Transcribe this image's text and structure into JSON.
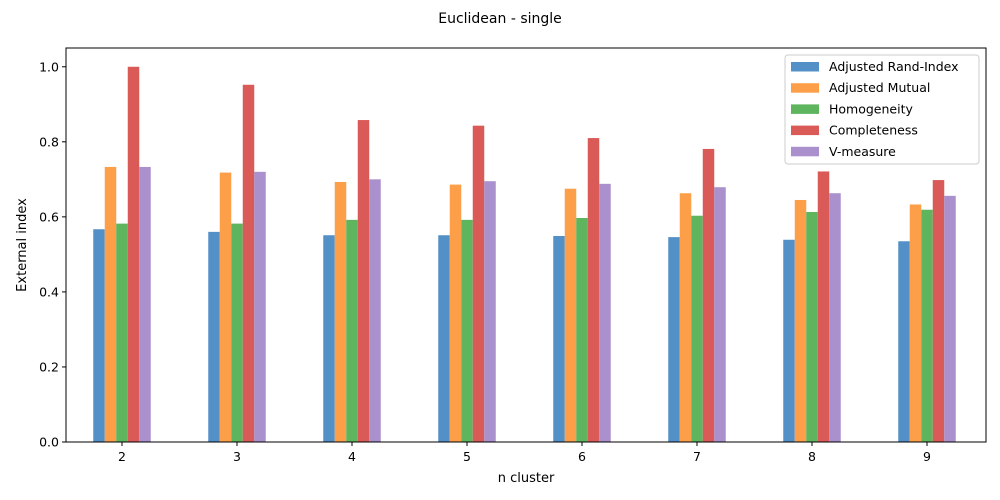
{
  "chart_data": {
    "type": "bar",
    "title": "Euclidean - single",
    "xlabel": "n cluster",
    "ylabel": "External index",
    "categories": [
      "2",
      "3",
      "4",
      "5",
      "6",
      "7",
      "8",
      "9"
    ],
    "ylim": [
      0,
      1.05
    ],
    "yticks": [
      0.0,
      0.2,
      0.4,
      0.6,
      0.8,
      1.0
    ],
    "ytick_labels": [
      "0.0",
      "0.2",
      "0.4",
      "0.6",
      "0.8",
      "1.0"
    ],
    "grid": false,
    "legend_position": "top-right",
    "series": [
      {
        "name": "Adjusted Rand-Index",
        "color": "#4a8ac4",
        "values": [
          0.567,
          0.56,
          0.551,
          0.551,
          0.549,
          0.546,
          0.539,
          0.535
        ]
      },
      {
        "name": "Adjusted Mutual",
        "color": "#fd9a3f",
        "values": [
          0.733,
          0.718,
          0.693,
          0.686,
          0.675,
          0.663,
          0.645,
          0.633
        ]
      },
      {
        "name": "Homogeneity",
        "color": "#55b154",
        "values": [
          0.582,
          0.582,
          0.592,
          0.592,
          0.597,
          0.603,
          0.613,
          0.619
        ]
      },
      {
        "name": "Completeness",
        "color": "#d8514f",
        "values": [
          1.0,
          0.952,
          0.858,
          0.843,
          0.81,
          0.781,
          0.721,
          0.698
        ]
      },
      {
        "name": "V-measure",
        "color": "#a58ac9",
        "values": [
          0.733,
          0.72,
          0.7,
          0.695,
          0.688,
          0.679,
          0.663,
          0.656
        ]
      }
    ]
  }
}
